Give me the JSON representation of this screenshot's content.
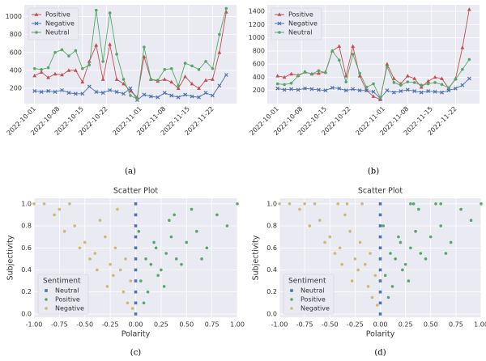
{
  "chart_data": [
    {
      "type": "line",
      "caption": "(a)",
      "legend": "upper left",
      "grid": true,
      "xlim": [
        "2022-09-28",
        "2022-11-29"
      ],
      "xticks": [
        "2022-10-01",
        "2022-10-08",
        "2022-10-15",
        "2022-10-22",
        "2022-11-01",
        "2022-11-08",
        "2022-11-15",
        "2022-11-22"
      ],
      "ylim": [
        30,
        1130
      ],
      "yticks": [
        200,
        400,
        600,
        800,
        1000
      ],
      "x": [
        "2022-10-01",
        "2022-10-03",
        "2022-10-05",
        "2022-10-07",
        "2022-10-09",
        "2022-10-11",
        "2022-10-13",
        "2022-10-15",
        "2022-10-17",
        "2022-10-19",
        "2022-10-21",
        "2022-10-23",
        "2022-10-25",
        "2022-10-27",
        "2022-10-29",
        "2022-10-31",
        "2022-11-02",
        "2022-11-04",
        "2022-11-06",
        "2022-11-08",
        "2022-11-10",
        "2022-11-12",
        "2022-11-14",
        "2022-11-16",
        "2022-11-18",
        "2022-11-20",
        "2022-11-22",
        "2022-11-24",
        "2022-11-26"
      ],
      "series": [
        {
          "name": "Positive",
          "color": "#c44e52",
          "marker": "triangle",
          "values": [
            340,
            380,
            320,
            360,
            350,
            400,
            400,
            270,
            500,
            680,
            300,
            690,
            300,
            250,
            170,
            100,
            550,
            300,
            280,
            300,
            270,
            200,
            330,
            250,
            200,
            290,
            300,
            600,
            1050
          ]
        },
        {
          "name": "Negative",
          "color": "#4c72b0",
          "marker": "x",
          "values": [
            170,
            160,
            170,
            160,
            180,
            150,
            140,
            140,
            220,
            160,
            150,
            180,
            160,
            140,
            200,
            70,
            130,
            110,
            100,
            150,
            120,
            100,
            130,
            110,
            100,
            150,
            120,
            230,
            350
          ]
        },
        {
          "name": "Neutral",
          "color": "#55a868",
          "marker": "circle",
          "values": [
            420,
            410,
            430,
            600,
            630,
            560,
            620,
            420,
            460,
            1070,
            500,
            1040,
            580,
            300,
            120,
            80,
            660,
            300,
            290,
            410,
            420,
            230,
            480,
            450,
            410,
            500,
            420,
            800,
            1090
          ]
        }
      ]
    },
    {
      "type": "line",
      "caption": "(b)",
      "legend": "upper left",
      "grid": true,
      "xlim": [
        "2022-09-28",
        "2022-11-29"
      ],
      "xticks": [
        "2022-10-01",
        "2022-10-08",
        "2022-10-15",
        "2022-10-22",
        "2022-11-01",
        "2022-11-08",
        "2022-11-15",
        "2022-11-22"
      ],
      "ylim": [
        0,
        1500
      ],
      "yticks": [
        200,
        400,
        600,
        800,
        1000,
        1200,
        1400
      ],
      "x": [
        "2022-10-01",
        "2022-10-03",
        "2022-10-05",
        "2022-10-07",
        "2022-10-09",
        "2022-10-11",
        "2022-10-13",
        "2022-10-15",
        "2022-10-17",
        "2022-10-19",
        "2022-10-21",
        "2022-10-23",
        "2022-10-25",
        "2022-10-27",
        "2022-10-29",
        "2022-10-31",
        "2022-11-02",
        "2022-11-04",
        "2022-11-06",
        "2022-11-08",
        "2022-11-10",
        "2022-11-12",
        "2022-11-14",
        "2022-11-16",
        "2022-11-18",
        "2022-11-20",
        "2022-11-22",
        "2022-11-24",
        "2022-11-26"
      ],
      "series": [
        {
          "name": "Positive",
          "color": "#c44e52",
          "marker": "triangle",
          "values": [
            420,
            400,
            450,
            430,
            480,
            450,
            460,
            480,
            800,
            870,
            420,
            870,
            420,
            200,
            110,
            60,
            600,
            380,
            300,
            420,
            380,
            250,
            340,
            400,
            380,
            230,
            380,
            850,
            1430
          ]
        },
        {
          "name": "Negative",
          "color": "#4c72b0",
          "marker": "x",
          "values": [
            230,
            210,
            220,
            210,
            230,
            220,
            210,
            200,
            240,
            230,
            200,
            220,
            200,
            200,
            180,
            80,
            200,
            170,
            190,
            210,
            190,
            170,
            190,
            180,
            170,
            200,
            230,
            280,
            380
          ]
        },
        {
          "name": "Neutral",
          "color": "#55a868",
          "marker": "circle",
          "values": [
            300,
            290,
            310,
            420,
            480,
            450,
            500,
            470,
            800,
            660,
            330,
            750,
            460,
            250,
            300,
            90,
            560,
            320,
            280,
            330,
            320,
            280,
            300,
            320,
            290,
            240,
            370,
            520,
            670
          ]
        }
      ]
    },
    {
      "type": "scatter",
      "caption": "(c)",
      "title": "Scatter Plot",
      "x_label": "Polarity",
      "y_label": "Subjectivity",
      "legend_title": "Sentiment",
      "legend": "lower left",
      "grid": true,
      "xlim": [
        -1,
        1
      ],
      "xticks": [
        {
          "value": -1,
          "label": "-1.00"
        },
        {
          "value": -0.75,
          "label": "-0.75"
        },
        {
          "value": -0.5,
          "label": "-0.50"
        },
        {
          "value": -0.25,
          "label": "-0.25"
        },
        {
          "value": 0,
          "label": "0.00"
        },
        {
          "value": 0.25,
          "label": "0.25"
        },
        {
          "value": 0.5,
          "label": "0.50"
        },
        {
          "value": 0.75,
          "label": "0.75"
        },
        {
          "value": 1,
          "label": "1.00"
        }
      ],
      "ylim": [
        -0.03,
        1.05
      ],
      "yticks": [
        {
          "value": 0,
          "label": "0.0"
        },
        0.2,
        0.4,
        0.6,
        0.8,
        {
          "value": 1,
          "label": "1.0"
        }
      ],
      "series": [
        {
          "name": "Neutral",
          "color": "#4c72b0",
          "marker": "square",
          "x": [
            0,
            0,
            0,
            0,
            0,
            0,
            0,
            0,
            0,
            0,
            0
          ],
          "values": [
            0,
            0.1,
            0.2,
            0.3,
            0.4,
            0.5,
            0.6,
            0.7,
            0.8,
            0.9,
            1.0
          ]
        },
        {
          "name": "Positive",
          "color": "#55a868",
          "marker": "circle",
          "x": [
            0.05,
            0.1,
            0.15,
            0.2,
            0.25,
            0.3,
            0.35,
            0.4,
            0.5,
            0.6,
            0.7,
            0.8,
            0.9,
            1.0,
            0.12,
            0.22,
            0.33,
            0.45,
            0.55,
            0.08,
            0.18,
            0.28,
            0.38,
            0.65,
            0.03
          ],
          "values": [
            0.3,
            0.5,
            0.45,
            0.6,
            0.4,
            0.55,
            0.7,
            0.5,
            0.65,
            0.75,
            0.6,
            0.9,
            0.8,
            1.0,
            0.2,
            0.35,
            0.85,
            0.45,
            0.95,
            0.1,
            0.65,
            0.25,
            0.9,
            0.5,
            0.75
          ]
        },
        {
          "name": "Negative",
          "color": "#ccb974",
          "marker": "circle",
          "x": [
            -0.05,
            -0.1,
            -0.15,
            -0.2,
            -0.25,
            -0.3,
            -0.4,
            -0.5,
            -0.6,
            -0.7,
            -0.8,
            -0.9,
            -1.0,
            -0.12,
            -0.22,
            -0.35,
            -0.45,
            -0.08,
            -0.18,
            -0.28,
            -0.55,
            -0.03,
            -0.65,
            -0.75,
            -0.38
          ],
          "values": [
            0.3,
            0.5,
            0.4,
            0.6,
            0.45,
            0.7,
            0.55,
            0.65,
            0.8,
            0.75,
            0.9,
            1.0,
            1.0,
            0.2,
            0.35,
            0.85,
            0.5,
            0.1,
            0.95,
            0.25,
            0.6,
            0.05,
            1.0,
            0.95,
            0.4
          ]
        }
      ]
    },
    {
      "type": "scatter",
      "caption": "(d)",
      "title": "Scatter Plot",
      "x_label": "Polarity",
      "y_label": "Subjectivity",
      "legend_title": "Sentiment",
      "legend": "lower left",
      "grid": true,
      "xlim": [
        -1,
        1
      ],
      "xticks": [
        {
          "value": -1,
          "label": "-1.00"
        },
        {
          "value": -0.75,
          "label": "-0.75"
        },
        {
          "value": -0.5,
          "label": "-0.50"
        },
        {
          "value": -0.25,
          "label": "-0.25"
        },
        {
          "value": 0,
          "label": "0.00"
        },
        {
          "value": 0.25,
          "label": "0.25"
        },
        {
          "value": 0.5,
          "label": "0.50"
        },
        {
          "value": 0.75,
          "label": "0.75"
        },
        {
          "value": 1,
          "label": "1.00"
        }
      ],
      "ylim": [
        -0.03,
        1.05
      ],
      "yticks": [
        {
          "value": 0,
          "label": "0.0"
        },
        0.2,
        0.4,
        0.6,
        0.8,
        {
          "value": 1,
          "label": "1.0"
        }
      ],
      "series": [
        {
          "name": "Neutral",
          "color": "#4c72b0",
          "marker": "square",
          "x": [
            0,
            0,
            0,
            0,
            0,
            0,
            0,
            0,
            0,
            0,
            0
          ],
          "values": [
            0,
            0.1,
            0.2,
            0.3,
            0.4,
            0.5,
            0.6,
            0.7,
            0.8,
            0.9,
            1.0
          ]
        },
        {
          "name": "Positive",
          "color": "#55a868",
          "marker": "circle",
          "x": [
            0.05,
            0.1,
            0.15,
            0.2,
            0.25,
            0.3,
            0.35,
            0.4,
            0.5,
            0.6,
            0.7,
            0.8,
            0.9,
            1.0,
            0.12,
            0.22,
            0.33,
            0.45,
            0.55,
            0.08,
            0.18,
            0.28,
            0.38,
            0.65,
            0.03,
            0.3,
            0.6
          ],
          "values": [
            0.35,
            0.55,
            0.5,
            0.65,
            0.45,
            0.6,
            0.75,
            0.55,
            0.7,
            0.8,
            0.65,
            0.95,
            0.85,
            1.0,
            0.25,
            0.4,
            1.0,
            0.5,
            1.0,
            0.15,
            0.7,
            0.3,
            0.95,
            0.55,
            0.8,
            1.0,
            1.0
          ]
        },
        {
          "name": "Negative",
          "color": "#ccb974",
          "marker": "circle",
          "x": [
            -0.05,
            -0.1,
            -0.15,
            -0.2,
            -0.25,
            -0.3,
            -0.4,
            -0.5,
            -0.6,
            -0.7,
            -0.8,
            -0.9,
            -1.0,
            -0.12,
            -0.22,
            -0.35,
            -0.45,
            -0.08,
            -0.18,
            -0.28,
            -0.55,
            -0.03,
            -0.65,
            -0.75,
            -0.38,
            -0.33,
            -0.42
          ],
          "values": [
            0.35,
            0.55,
            0.45,
            0.65,
            0.5,
            0.75,
            0.6,
            0.7,
            0.85,
            0.8,
            0.95,
            1.0,
            1.0,
            0.25,
            0.4,
            0.9,
            0.55,
            0.15,
            1.0,
            0.3,
            0.65,
            0.08,
            1.0,
            1.0,
            0.45,
            1.0,
            1.0
          ]
        }
      ]
    }
  ]
}
